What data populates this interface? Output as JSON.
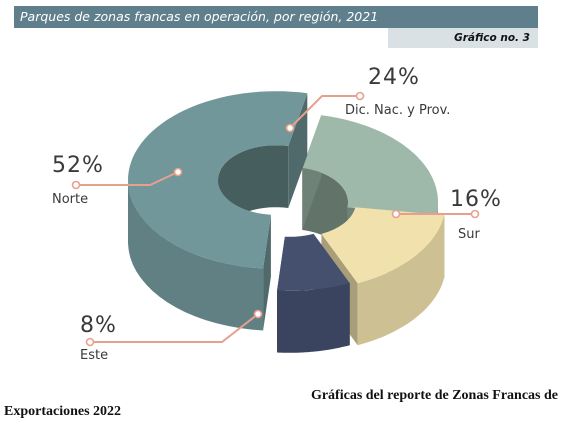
{
  "header": {
    "title": "Parques de zonas francas en operación, por región, 2021",
    "tag": "Gráfico no. 3"
  },
  "chart_data": {
    "type": "pie",
    "title": "Parques de zonas francas en operación, por región, 2021",
    "categories": [
      "Norte",
      "Dic. Nac. y Prov.",
      "Sur",
      "Este"
    ],
    "values": [
      52,
      24,
      16,
      8
    ],
    "value_labels": [
      "52%",
      "24%",
      "16%",
      "8%"
    ],
    "colors": {
      "Norte": "#72979a",
      "Dic. Nac. y Prov.": "#9eb9aa",
      "Sur": "#f1e2ad",
      "Este": "#45506f"
    },
    "leader_color": "#e8a08e",
    "style": "3d-donut",
    "legend": "none"
  },
  "caption": {
    "line1": "Gráficas del reporte de Zonas Francas de",
    "line2": "Exportaciones 2022"
  }
}
